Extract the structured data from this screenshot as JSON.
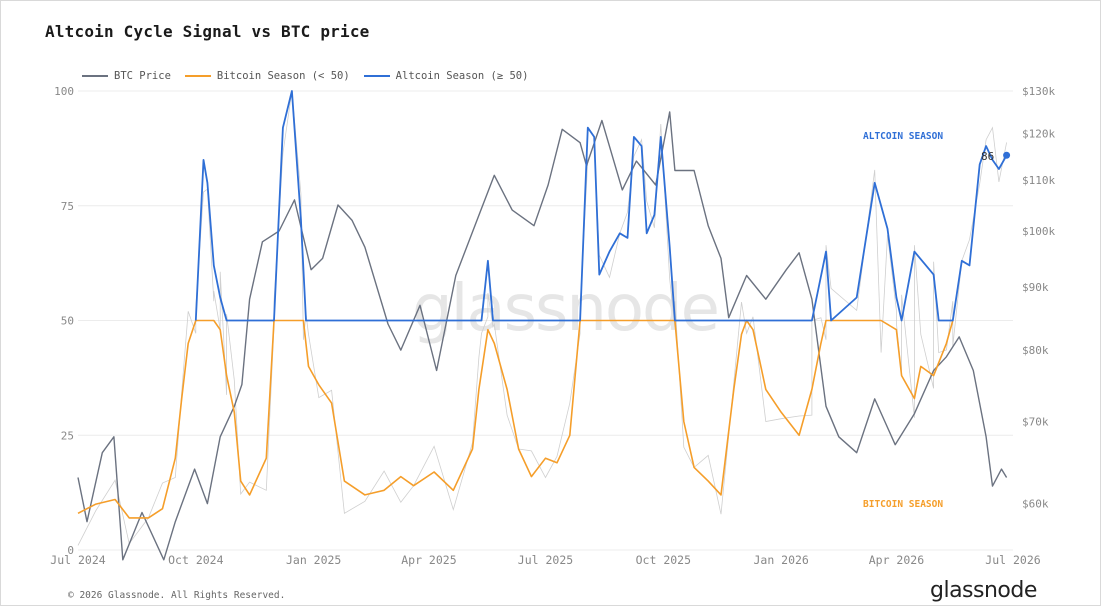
{
  "title": "Altcoin Cycle Signal vs BTC price",
  "footer": "© 2026 Glassnode. All Rights Reserved.",
  "brand": "glassnode",
  "watermark": "glassnode",
  "annotations": {
    "altcoin": "ALTCOIN SEASON",
    "bitcoin": "BITCOIN SEASON",
    "last_value": "86"
  },
  "colors": {
    "btc": "#6b7280",
    "bitcoin_season": "#f59e2a",
    "altcoin_season": "#2f6fd6",
    "raw": "#cfcfcf",
    "grid": "#ececec"
  },
  "chart_data": {
    "type": "line",
    "x_ticks": [
      "Jul 2024",
      "Oct 2024",
      "Jan 2025",
      "Apr 2025",
      "Jul 2025",
      "Oct 2025",
      "Jan 2026",
      "Apr 2026",
      "Jul 2026"
    ],
    "y_left_ticks": [
      "0",
      "25",
      "50",
      "75",
      "100"
    ],
    "y_right_ticks": [
      "$60k",
      "$70k",
      "$80k",
      "$90k",
      "$100k",
      "$110k",
      "$120k",
      "$130k"
    ],
    "y_left_range": [
      0,
      100
    ],
    "y_right_range": [
      "$55k",
      "$130k"
    ],
    "y_right_scale": "log",
    "x_range": [
      "2024-07-01",
      "2026-07-01"
    ],
    "legend": [
      "BTC Price",
      "Bitcoin Season (< 50)",
      "Altcoin Season (≥ 50)"
    ],
    "legend_position": "top-left",
    "threshold": 50,
    "series": [
      {
        "name": "BTC Price",
        "axis": "right",
        "points": [
          [
            "2024-07-01",
            63
          ],
          [
            "2024-07-08",
            58
          ],
          [
            "2024-07-20",
            66
          ],
          [
            "2024-07-29",
            68
          ],
          [
            "2024-08-05",
            54
          ],
          [
            "2024-08-20",
            59
          ],
          [
            "2024-09-06",
            54
          ],
          [
            "2024-09-15",
            58
          ],
          [
            "2024-09-30",
            64
          ],
          [
            "2024-10-10",
            60
          ],
          [
            "2024-10-20",
            68
          ],
          [
            "2024-10-31",
            72
          ],
          [
            "2024-11-06",
            75
          ],
          [
            "2024-11-12",
            88
          ],
          [
            "2024-11-22",
            98
          ],
          [
            "2024-12-05",
            100
          ],
          [
            "2024-12-17",
            106
          ],
          [
            "2024-12-30",
            93
          ],
          [
            "2025-01-08",
            95
          ],
          [
            "2025-01-20",
            105
          ],
          [
            "2025-01-31",
            102
          ],
          [
            "2025-02-10",
            97
          ],
          [
            "2025-02-28",
            84
          ],
          [
            "2025-03-10",
            80
          ],
          [
            "2025-03-25",
            87
          ],
          [
            "2025-04-07",
            77
          ],
          [
            "2025-04-22",
            92
          ],
          [
            "2025-05-10",
            103
          ],
          [
            "2025-05-22",
            111
          ],
          [
            "2025-06-05",
            104
          ],
          [
            "2025-06-22",
            101
          ],
          [
            "2025-07-03",
            109
          ],
          [
            "2025-07-14",
            121
          ],
          [
            "2025-07-28",
            118
          ],
          [
            "2025-08-02",
            113
          ],
          [
            "2025-08-14",
            123
          ],
          [
            "2025-08-30",
            108
          ],
          [
            "2025-09-10",
            114
          ],
          [
            "2025-09-25",
            109
          ],
          [
            "2025-10-06",
            125
          ],
          [
            "2025-10-10",
            112
          ],
          [
            "2025-10-25",
            112
          ],
          [
            "2025-11-05",
            101
          ],
          [
            "2025-11-15",
            95
          ],
          [
            "2025-11-21",
            85
          ],
          [
            "2025-12-05",
            92
          ],
          [
            "2025-12-20",
            88
          ],
          [
            "2026-01-05",
            93
          ],
          [
            "2026-01-15",
            96
          ],
          [
            "2026-01-25",
            88
          ],
          [
            "2026-02-05",
            72
          ],
          [
            "2026-02-15",
            68
          ],
          [
            "2026-03-01",
            66
          ],
          [
            "2026-03-15",
            73
          ],
          [
            "2026-03-31",
            67
          ],
          [
            "2026-04-15",
            71
          ],
          [
            "2026-04-30",
            77
          ],
          [
            "2026-05-10",
            79
          ],
          [
            "2026-05-20",
            82
          ],
          [
            "2026-05-31",
            77
          ],
          [
            "2026-06-10",
            68
          ],
          [
            "2026-06-15",
            62
          ],
          [
            "2026-06-22",
            64
          ],
          [
            "2026-06-26",
            63
          ]
        ]
      },
      {
        "name": "Bitcoin Season (< 50)",
        "axis": "left",
        "points": [
          [
            "2024-07-01",
            8
          ],
          [
            "2024-07-15",
            10
          ],
          [
            "2024-07-30",
            11
          ],
          [
            "2024-08-10",
            7
          ],
          [
            "2024-08-25",
            7
          ],
          [
            "2024-09-05",
            9
          ],
          [
            "2024-09-15",
            20
          ],
          [
            "2024-09-20",
            33
          ],
          [
            "2024-09-25",
            45
          ],
          [
            "2024-10-01",
            50
          ],
          [
            "2024-10-15",
            50
          ],
          [
            "2024-10-20",
            48
          ],
          [
            "2024-10-25",
            38
          ],
          [
            "2024-10-31",
            30
          ],
          [
            "2024-11-05",
            15
          ],
          [
            "2024-11-12",
            12
          ],
          [
            "2024-11-25",
            20
          ],
          [
            "2024-12-01",
            50
          ],
          [
            "2024-12-24",
            50
          ],
          [
            "2024-12-28",
            40
          ],
          [
            "2025-01-05",
            36
          ],
          [
            "2025-01-15",
            32
          ],
          [
            "2025-01-25",
            15
          ],
          [
            "2025-02-10",
            12
          ],
          [
            "2025-02-25",
            13
          ],
          [
            "2025-03-10",
            16
          ],
          [
            "2025-03-20",
            14
          ],
          [
            "2025-04-05",
            17
          ],
          [
            "2025-04-20",
            13
          ],
          [
            "2025-05-05",
            22
          ],
          [
            "2025-05-10",
            35
          ],
          [
            "2025-05-17",
            48
          ],
          [
            "2025-05-22",
            45
          ],
          [
            "2025-06-01",
            35
          ],
          [
            "2025-06-10",
            22
          ],
          [
            "2025-06-20",
            16
          ],
          [
            "2025-07-01",
            20
          ],
          [
            "2025-07-10",
            19
          ],
          [
            "2025-07-20",
            25
          ],
          [
            "2025-07-28",
            50
          ],
          [
            "2025-10-10",
            50
          ],
          [
            "2025-10-17",
            28
          ],
          [
            "2025-10-25",
            18
          ],
          [
            "2025-11-05",
            15
          ],
          [
            "2025-11-15",
            12
          ],
          [
            "2025-11-25",
            35
          ],
          [
            "2025-12-01",
            47
          ],
          [
            "2025-12-05",
            50
          ],
          [
            "2025-12-10",
            48
          ],
          [
            "2025-12-20",
            35
          ],
          [
            "2026-01-01",
            30
          ],
          [
            "2026-01-15",
            25
          ],
          [
            "2026-01-25",
            35
          ],
          [
            "2026-02-01",
            45
          ],
          [
            "2026-02-05",
            50
          ],
          [
            "2026-03-20",
            50
          ],
          [
            "2026-04-01",
            48
          ],
          [
            "2026-04-05",
            38
          ],
          [
            "2026-04-15",
            33
          ],
          [
            "2026-04-20",
            40
          ],
          [
            "2026-04-30",
            38
          ],
          [
            "2026-05-10",
            45
          ],
          [
            "2026-05-15",
            50
          ]
        ]
      },
      {
        "name": "Altcoin Season (≥ 50)",
        "axis": "left",
        "points": [
          [
            "2024-10-01",
            50
          ],
          [
            "2024-10-07",
            85
          ],
          [
            "2024-10-10",
            80
          ],
          [
            "2024-10-15",
            62
          ],
          [
            "2024-10-20",
            55
          ],
          [
            "2024-10-25",
            50
          ],
          [
            "2024-12-01",
            50
          ],
          [
            "2024-12-08",
            92
          ],
          [
            "2024-12-15",
            100
          ],
          [
            "2024-12-22",
            72
          ],
          [
            "2024-12-26",
            50
          ],
          [
            "2025-05-12",
            50
          ],
          [
            "2025-05-17",
            63
          ],
          [
            "2025-05-21",
            50
          ],
          [
            "2025-07-28",
            50
          ],
          [
            "2025-08-03",
            92
          ],
          [
            "2025-08-08",
            90
          ],
          [
            "2025-08-12",
            60
          ],
          [
            "2025-08-20",
            65
          ],
          [
            "2025-08-28",
            69
          ],
          [
            "2025-09-03",
            68
          ],
          [
            "2025-09-08",
            90
          ],
          [
            "2025-09-14",
            88
          ],
          [
            "2025-09-18",
            69
          ],
          [
            "2025-09-24",
            73
          ],
          [
            "2025-09-29",
            90
          ],
          [
            "2025-10-06",
            66
          ],
          [
            "2025-10-10",
            50
          ],
          [
            "2026-01-25",
            50
          ],
          [
            "2026-02-05",
            65
          ],
          [
            "2026-02-09",
            50
          ],
          [
            "2026-03-01",
            55
          ],
          [
            "2026-03-15",
            80
          ],
          [
            "2026-03-25",
            70
          ],
          [
            "2026-04-01",
            55
          ],
          [
            "2026-04-05",
            50
          ],
          [
            "2026-04-15",
            65
          ],
          [
            "2026-04-30",
            60
          ],
          [
            "2026-05-04",
            50
          ],
          [
            "2026-05-15",
            50
          ],
          [
            "2026-05-22",
            63
          ],
          [
            "2026-05-28",
            62
          ],
          [
            "2026-06-05",
            84
          ],
          [
            "2026-06-10",
            88
          ],
          [
            "2026-06-15",
            85
          ],
          [
            "2026-06-20",
            83
          ],
          [
            "2026-06-26",
            86
          ]
        ]
      }
    ]
  }
}
